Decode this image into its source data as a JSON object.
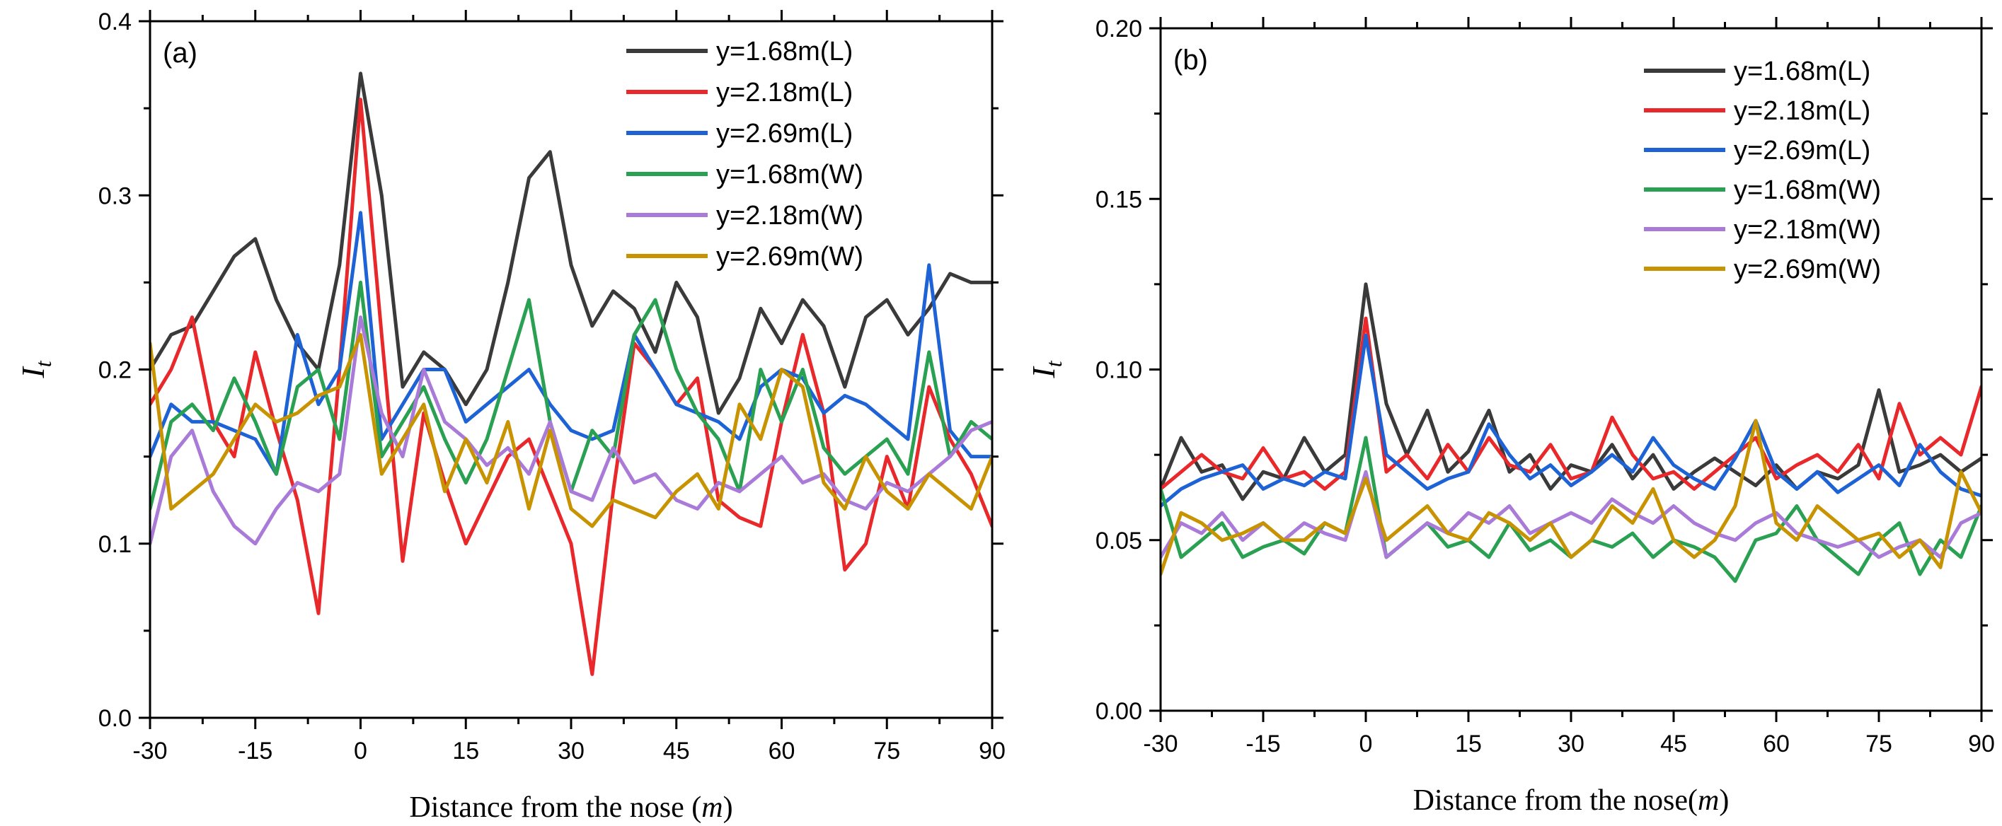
{
  "chart_data": [
    {
      "type": "line",
      "panel_label": "(a)",
      "xlabel": "Distance from the nose",
      "xlabel_unit": "m",
      "ylabel": "I",
      "ylabel_sub": "t",
      "xlim": [
        -30,
        90
      ],
      "ylim": [
        0,
        0.4
      ],
      "xticks": [
        "-30",
        "-15",
        "0",
        "15",
        "30",
        "45",
        "60",
        "75",
        "90"
      ],
      "xtick_values": [
        -30,
        -15,
        0,
        15,
        30,
        45,
        60,
        75,
        90
      ],
      "yticks": [
        "0.0",
        "0.1",
        "0.2",
        "0.3",
        "0.4"
      ],
      "ytick_values": [
        0,
        0.1,
        0.2,
        0.3,
        0.4
      ],
      "legend_position": "top-right",
      "x": [
        -30,
        -27,
        -24,
        -21,
        -18,
        -15,
        -12,
        -9,
        -6,
        -3,
        0,
        3,
        6,
        9,
        12,
        15,
        18,
        21,
        24,
        27,
        30,
        33,
        36,
        39,
        42,
        45,
        48,
        51,
        54,
        57,
        60,
        63,
        66,
        69,
        72,
        75,
        78,
        81,
        84,
        87,
        90
      ],
      "series": [
        {
          "name": "y=1.68m(L)",
          "color": "#3a3a3a",
          "values": [
            0.2,
            0.22,
            0.225,
            0.245,
            0.265,
            0.275,
            0.24,
            0.215,
            0.2,
            0.26,
            0.37,
            0.3,
            0.19,
            0.21,
            0.2,
            0.18,
            0.2,
            0.25,
            0.31,
            0.325,
            0.26,
            0.225,
            0.245,
            0.235,
            0.21,
            0.25,
            0.23,
            0.175,
            0.195,
            0.235,
            0.215,
            0.24,
            0.225,
            0.19,
            0.23,
            0.24,
            0.22,
            0.235,
            0.255,
            0.25,
            0.25
          ]
        },
        {
          "name": "y=2.18m(L)",
          "color": "#e8282b",
          "values": [
            0.18,
            0.2,
            0.23,
            0.17,
            0.15,
            0.21,
            0.165,
            0.125,
            0.06,
            0.2,
            0.355,
            0.22,
            0.09,
            0.175,
            0.135,
            0.1,
            0.125,
            0.15,
            0.16,
            0.13,
            0.1,
            0.025,
            0.13,
            0.215,
            0.2,
            0.18,
            0.195,
            0.125,
            0.115,
            0.11,
            0.17,
            0.22,
            0.175,
            0.085,
            0.1,
            0.15,
            0.12,
            0.19,
            0.16,
            0.14,
            0.11
          ]
        },
        {
          "name": "y=2.69m(L)",
          "color": "#1e63d6",
          "values": [
            0.15,
            0.18,
            0.17,
            0.17,
            0.165,
            0.16,
            0.14,
            0.22,
            0.18,
            0.2,
            0.29,
            0.16,
            0.18,
            0.2,
            0.2,
            0.17,
            0.18,
            0.19,
            0.2,
            0.18,
            0.165,
            0.16,
            0.165,
            0.22,
            0.2,
            0.18,
            0.175,
            0.17,
            0.16,
            0.19,
            0.2,
            0.195,
            0.175,
            0.185,
            0.18,
            0.17,
            0.16,
            0.26,
            0.165,
            0.15,
            0.15
          ]
        },
        {
          "name": "y=1.68m(W)",
          "color": "#2aa052",
          "values": [
            0.12,
            0.17,
            0.18,
            0.165,
            0.195,
            0.17,
            0.14,
            0.19,
            0.2,
            0.16,
            0.25,
            0.15,
            0.17,
            0.19,
            0.16,
            0.135,
            0.16,
            0.2,
            0.24,
            0.17,
            0.13,
            0.165,
            0.15,
            0.22,
            0.24,
            0.2,
            0.175,
            0.16,
            0.13,
            0.2,
            0.17,
            0.2,
            0.155,
            0.14,
            0.15,
            0.16,
            0.14,
            0.21,
            0.15,
            0.17,
            0.16
          ]
        },
        {
          "name": "y=2.18m(W)",
          "color": "#a97ad8",
          "values": [
            0.1,
            0.15,
            0.165,
            0.13,
            0.11,
            0.1,
            0.12,
            0.135,
            0.13,
            0.14,
            0.23,
            0.175,
            0.15,
            0.2,
            0.17,
            0.16,
            0.145,
            0.155,
            0.14,
            0.17,
            0.13,
            0.125,
            0.155,
            0.135,
            0.14,
            0.125,
            0.12,
            0.135,
            0.13,
            0.14,
            0.15,
            0.135,
            0.14,
            0.125,
            0.12,
            0.135,
            0.13,
            0.14,
            0.15,
            0.165,
            0.17
          ]
        },
        {
          "name": "y=2.69m(W)",
          "color": "#c89300",
          "values": [
            0.215,
            0.12,
            0.13,
            0.14,
            0.16,
            0.18,
            0.17,
            0.175,
            0.185,
            0.19,
            0.22,
            0.14,
            0.16,
            0.18,
            0.13,
            0.16,
            0.135,
            0.17,
            0.12,
            0.165,
            0.12,
            0.11,
            0.125,
            0.12,
            0.115,
            0.13,
            0.14,
            0.12,
            0.18,
            0.16,
            0.2,
            0.19,
            0.135,
            0.12,
            0.15,
            0.13,
            0.12,
            0.14,
            0.13,
            0.12,
            0.15
          ]
        }
      ]
    },
    {
      "type": "line",
      "panel_label": "(b)",
      "xlabel": "Distance from the nose",
      "xlabel_unit": "m",
      "ylabel": "I",
      "ylabel_sub": "t",
      "xlim": [
        -30,
        90
      ],
      "ylim": [
        0,
        0.2
      ],
      "xticks": [
        "-30",
        "-15",
        "0",
        "15",
        "30",
        "45",
        "60",
        "75",
        "90"
      ],
      "xtick_values": [
        -30,
        -15,
        0,
        15,
        30,
        45,
        60,
        75,
        90
      ],
      "yticks": [
        "0.00",
        "0.05",
        "0.10",
        "0.15",
        "0.20"
      ],
      "ytick_values": [
        0,
        0.05,
        0.1,
        0.15,
        0.2
      ],
      "legend_position": "top-right",
      "x": [
        -30,
        -27,
        -24,
        -21,
        -18,
        -15,
        -12,
        -9,
        -6,
        -3,
        0,
        3,
        6,
        9,
        12,
        15,
        18,
        21,
        24,
        27,
        30,
        33,
        36,
        39,
        42,
        45,
        48,
        51,
        54,
        57,
        60,
        63,
        66,
        69,
        72,
        75,
        78,
        81,
        84,
        87,
        90
      ],
      "series": [
        {
          "name": "y=1.68m(L)",
          "color": "#3a3a3a",
          "values": [
            0.065,
            0.08,
            0.07,
            0.072,
            0.062,
            0.07,
            0.068,
            0.08,
            0.07,
            0.075,
            0.125,
            0.09,
            0.075,
            0.088,
            0.07,
            0.076,
            0.088,
            0.07,
            0.075,
            0.065,
            0.072,
            0.07,
            0.078,
            0.068,
            0.075,
            0.065,
            0.07,
            0.074,
            0.07,
            0.066,
            0.072,
            0.065,
            0.07,
            0.068,
            0.072,
            0.094,
            0.07,
            0.072,
            0.075,
            0.07,
            0.074
          ]
        },
        {
          "name": "y=2.18m(L)",
          "color": "#e8282b",
          "values": [
            0.065,
            0.07,
            0.075,
            0.07,
            0.068,
            0.077,
            0.068,
            0.07,
            0.065,
            0.07,
            0.115,
            0.07,
            0.075,
            0.068,
            0.078,
            0.07,
            0.08,
            0.072,
            0.07,
            0.078,
            0.068,
            0.07,
            0.086,
            0.075,
            0.068,
            0.07,
            0.065,
            0.07,
            0.075,
            0.08,
            0.068,
            0.072,
            0.075,
            0.07,
            0.078,
            0.068,
            0.09,
            0.075,
            0.08,
            0.075,
            0.095
          ]
        },
        {
          "name": "y=2.69m(L)",
          "color": "#1e63d6",
          "values": [
            0.06,
            0.065,
            0.068,
            0.07,
            0.072,
            0.065,
            0.068,
            0.066,
            0.07,
            0.068,
            0.11,
            0.075,
            0.07,
            0.065,
            0.068,
            0.07,
            0.084,
            0.075,
            0.068,
            0.072,
            0.066,
            0.07,
            0.075,
            0.07,
            0.08,
            0.072,
            0.068,
            0.065,
            0.074,
            0.085,
            0.07,
            0.065,
            0.07,
            0.064,
            0.068,
            0.072,
            0.066,
            0.078,
            0.07,
            0.065,
            0.063
          ]
        },
        {
          "name": "y=1.68m(W)",
          "color": "#2aa052",
          "values": [
            0.065,
            0.045,
            0.05,
            0.055,
            0.045,
            0.048,
            0.05,
            0.046,
            0.055,
            0.052,
            0.08,
            0.045,
            0.05,
            0.055,
            0.048,
            0.05,
            0.045,
            0.055,
            0.047,
            0.05,
            0.045,
            0.05,
            0.048,
            0.052,
            0.045,
            0.05,
            0.048,
            0.045,
            0.038,
            0.05,
            0.052,
            0.06,
            0.05,
            0.045,
            0.04,
            0.05,
            0.055,
            0.04,
            0.05,
            0.045,
            0.06
          ]
        },
        {
          "name": "y=2.18m(W)",
          "color": "#a97ad8",
          "values": [
            0.045,
            0.055,
            0.052,
            0.058,
            0.05,
            0.055,
            0.05,
            0.055,
            0.052,
            0.05,
            0.07,
            0.045,
            0.05,
            0.055,
            0.052,
            0.058,
            0.055,
            0.06,
            0.052,
            0.055,
            0.058,
            0.055,
            0.062,
            0.058,
            0.055,
            0.06,
            0.055,
            0.052,
            0.05,
            0.055,
            0.058,
            0.052,
            0.05,
            0.048,
            0.05,
            0.045,
            0.048,
            0.05,
            0.045,
            0.055,
            0.058
          ]
        },
        {
          "name": "y=2.69m(W)",
          "color": "#c89300",
          "values": [
            0.04,
            0.058,
            0.055,
            0.05,
            0.052,
            0.055,
            0.05,
            0.05,
            0.055,
            0.052,
            0.068,
            0.05,
            0.055,
            0.06,
            0.052,
            0.05,
            0.058,
            0.055,
            0.05,
            0.055,
            0.045,
            0.05,
            0.06,
            0.055,
            0.065,
            0.05,
            0.045,
            0.05,
            0.06,
            0.085,
            0.055,
            0.05,
            0.06,
            0.055,
            0.05,
            0.052,
            0.045,
            0.05,
            0.042,
            0.07,
            0.058
          ]
        }
      ]
    }
  ]
}
